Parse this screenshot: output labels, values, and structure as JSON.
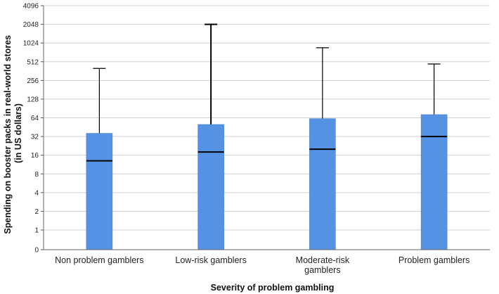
{
  "chart_data": {
    "type": "boxplot",
    "xlabel": "Severity of problem gambling",
    "ylabel_lines": [
      "Spending on booster packs in real-world stores",
      "(in US dollars)"
    ],
    "y_scale": "log2 (0 at base)",
    "y_ticks": [
      0,
      1,
      2,
      4,
      8,
      16,
      32,
      64,
      128,
      256,
      512,
      1024,
      2048,
      4096
    ],
    "grid": true,
    "box_color": "#5592e4",
    "categories": [
      {
        "label_lines": [
          "Non problem gamblers"
        ],
        "q1": 0,
        "median": 13,
        "q3": 36,
        "whisker_high": 400
      },
      {
        "label_lines": [
          "Low-risk gamblers"
        ],
        "q1": 0,
        "median": 18,
        "q3": 50,
        "whisker_high": 2048
      },
      {
        "label_lines": [
          "Moderate-risk",
          "gamblers"
        ],
        "q1": 0,
        "median": 20,
        "q3": 62,
        "whisker_high": 860
      },
      {
        "label_lines": [
          "Problem gamblers"
        ],
        "q1": 0,
        "median": 32,
        "q3": 72,
        "whisker_high": 470
      }
    ]
  }
}
